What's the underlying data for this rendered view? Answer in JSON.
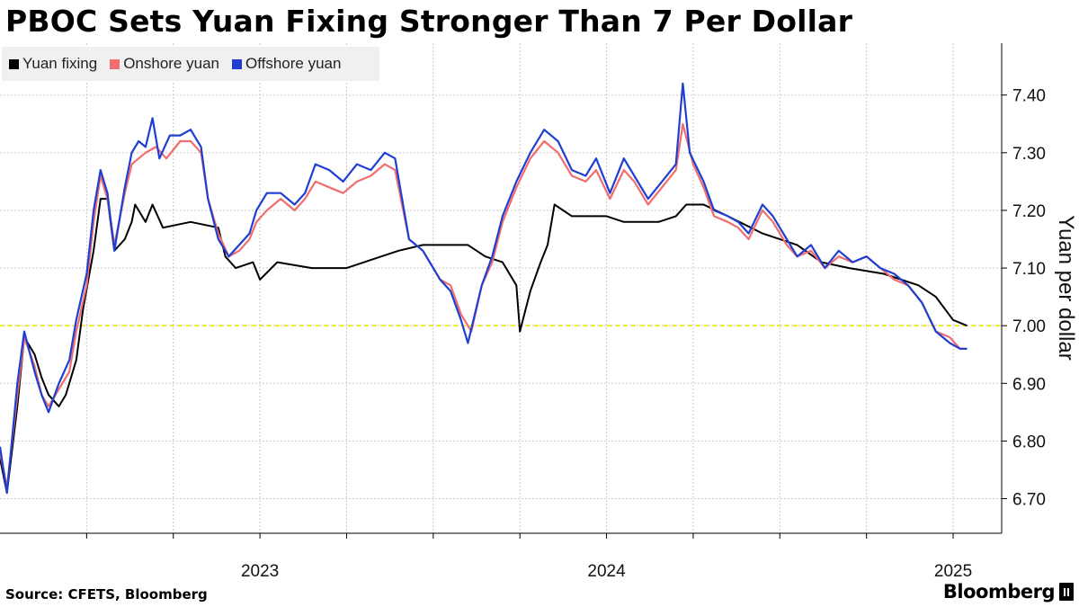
{
  "title": "PBOC Sets Yuan Fixing Stronger Than 7 Per Dollar",
  "source": "Source: CFETS, Bloomberg",
  "brand": "Bloomberg",
  "colors": {
    "fixing": "#000000",
    "onshore": "#f26d6d",
    "offshore": "#1f3fd1",
    "reference": "#f2e600",
    "grid": "#c8c8c8"
  },
  "chart_data": {
    "type": "line",
    "title": "PBOC Sets Yuan Fixing Stronger Than 7 Per Dollar",
    "xlabel": "",
    "ylabel": "Yuan per dollar",
    "x_ticks": [
      "2023",
      "2024",
      "2025"
    ],
    "y_ticks": [
      "6.70",
      "6.80",
      "6.90",
      "7.00",
      "7.10",
      "7.20",
      "7.30",
      "7.40"
    ],
    "ylim": [
      6.64,
      7.49
    ],
    "xlim": [
      2022.75,
      2025.64
    ],
    "y_axis_side": "right",
    "grid": true,
    "legend": "top-left",
    "reference_line": {
      "y": 7.0,
      "style": "dashed"
    },
    "series": [
      {
        "name": "Yuan fixing",
        "color": "#000000",
        "points": [
          [
            2022.75,
            6.77
          ],
          [
            2022.77,
            6.71
          ],
          [
            2022.8,
            6.86
          ],
          [
            2022.82,
            6.98
          ],
          [
            2022.85,
            6.95
          ],
          [
            2022.87,
            6.91
          ],
          [
            2022.89,
            6.88
          ],
          [
            2022.92,
            6.86
          ],
          [
            2022.94,
            6.88
          ],
          [
            2022.97,
            6.94
          ],
          [
            2022.99,
            7.03
          ],
          [
            2023.02,
            7.13
          ],
          [
            2023.04,
            7.22
          ],
          [
            2023.06,
            7.22
          ],
          [
            2023.08,
            7.13
          ],
          [
            2023.11,
            7.15
          ],
          [
            2023.13,
            7.18
          ],
          [
            2023.14,
            7.21
          ],
          [
            2023.17,
            7.18
          ],
          [
            2023.19,
            7.21
          ],
          [
            2023.22,
            7.17
          ],
          [
            2023.3,
            7.18
          ],
          [
            2023.38,
            7.17
          ],
          [
            2023.4,
            7.12
          ],
          [
            2023.43,
            7.1
          ],
          [
            2023.48,
            7.11
          ],
          [
            2023.5,
            7.08
          ],
          [
            2023.55,
            7.11
          ],
          [
            2023.65,
            7.1
          ],
          [
            2023.75,
            7.1
          ],
          [
            2023.85,
            7.12
          ],
          [
            2023.9,
            7.13
          ],
          [
            2023.97,
            7.14
          ],
          [
            2024.05,
            7.14
          ],
          [
            2024.1,
            7.14
          ],
          [
            2024.15,
            7.12
          ],
          [
            2024.2,
            7.11
          ],
          [
            2024.24,
            7.07
          ],
          [
            2024.25,
            6.99
          ],
          [
            2024.28,
            7.06
          ],
          [
            2024.31,
            7.11
          ],
          [
            2024.33,
            7.14
          ],
          [
            2024.35,
            7.21
          ],
          [
            2024.4,
            7.19
          ],
          [
            2024.5,
            7.19
          ],
          [
            2024.55,
            7.18
          ],
          [
            2024.65,
            7.18
          ],
          [
            2024.7,
            7.19
          ],
          [
            2024.73,
            7.21
          ],
          [
            2024.78,
            7.21
          ],
          [
            2024.85,
            7.19
          ],
          [
            2024.95,
            7.16
          ],
          [
            2025.05,
            7.14
          ],
          [
            2025.12,
            7.11
          ],
          [
            2025.2,
            7.1
          ],
          [
            2025.3,
            7.09
          ],
          [
            2025.4,
            7.07
          ],
          [
            2025.45,
            7.05
          ],
          [
            2025.5,
            7.01
          ],
          [
            2025.54,
            7.0
          ]
        ]
      },
      {
        "name": "Onshore yuan",
        "color": "#f26d6d",
        "points": [
          [
            2022.75,
            6.78
          ],
          [
            2022.77,
            6.72
          ],
          [
            2022.8,
            6.88
          ],
          [
            2022.82,
            6.98
          ],
          [
            2022.85,
            6.93
          ],
          [
            2022.87,
            6.88
          ],
          [
            2022.89,
            6.86
          ],
          [
            2022.92,
            6.89
          ],
          [
            2022.95,
            6.92
          ],
          [
            2022.97,
            6.99
          ],
          [
            2023.0,
            7.07
          ],
          [
            2023.02,
            7.18
          ],
          [
            2023.04,
            7.26
          ],
          [
            2023.06,
            7.22
          ],
          [
            2023.08,
            7.14
          ],
          [
            2023.11,
            7.23
          ],
          [
            2023.13,
            7.28
          ],
          [
            2023.15,
            7.29
          ],
          [
            2023.17,
            7.3
          ],
          [
            2023.2,
            7.31
          ],
          [
            2023.23,
            7.29
          ],
          [
            2023.27,
            7.32
          ],
          [
            2023.3,
            7.32
          ],
          [
            2023.33,
            7.3
          ],
          [
            2023.35,
            7.22
          ],
          [
            2023.38,
            7.16
          ],
          [
            2023.41,
            7.12
          ],
          [
            2023.44,
            7.13
          ],
          [
            2023.47,
            7.15
          ],
          [
            2023.49,
            7.18
          ],
          [
            2023.52,
            7.2
          ],
          [
            2023.56,
            7.22
          ],
          [
            2023.6,
            7.2
          ],
          [
            2023.63,
            7.22
          ],
          [
            2023.66,
            7.25
          ],
          [
            2023.7,
            7.24
          ],
          [
            2023.74,
            7.23
          ],
          [
            2023.78,
            7.25
          ],
          [
            2023.82,
            7.26
          ],
          [
            2023.86,
            7.28
          ],
          [
            2023.89,
            7.27
          ],
          [
            2023.93,
            7.15
          ],
          [
            2023.97,
            7.13
          ],
          [
            2024.02,
            7.08
          ],
          [
            2024.05,
            7.07
          ],
          [
            2024.08,
            7.02
          ],
          [
            2024.11,
            6.99
          ],
          [
            2024.14,
            7.07
          ],
          [
            2024.17,
            7.11
          ],
          [
            2024.2,
            7.18
          ],
          [
            2024.24,
            7.24
          ],
          [
            2024.28,
            7.29
          ],
          [
            2024.32,
            7.32
          ],
          [
            2024.36,
            7.3
          ],
          [
            2024.4,
            7.26
          ],
          [
            2024.44,
            7.25
          ],
          [
            2024.47,
            7.27
          ],
          [
            2024.51,
            7.22
          ],
          [
            2024.55,
            7.27
          ],
          [
            2024.58,
            7.25
          ],
          [
            2024.62,
            7.21
          ],
          [
            2024.66,
            7.24
          ],
          [
            2024.7,
            7.27
          ],
          [
            2024.72,
            7.35
          ],
          [
            2024.75,
            7.28
          ],
          [
            2024.78,
            7.24
          ],
          [
            2024.81,
            7.19
          ],
          [
            2024.85,
            7.18
          ],
          [
            2024.88,
            7.17
          ],
          [
            2024.91,
            7.15
          ],
          [
            2024.95,
            7.2
          ],
          [
            2024.98,
            7.18
          ],
          [
            2025.02,
            7.14
          ],
          [
            2025.05,
            7.12
          ],
          [
            2025.09,
            7.13
          ],
          [
            2025.13,
            7.1
          ],
          [
            2025.17,
            7.12
          ],
          [
            2025.21,
            7.11
          ],
          [
            2025.25,
            7.12
          ],
          [
            2025.29,
            7.1
          ],
          [
            2025.33,
            7.08
          ],
          [
            2025.37,
            7.07
          ],
          [
            2025.41,
            7.04
          ],
          [
            2025.45,
            6.99
          ],
          [
            2025.49,
            6.98
          ],
          [
            2025.52,
            6.96
          ],
          [
            2025.54,
            6.96
          ]
        ]
      },
      {
        "name": "Offshore yuan",
        "color": "#1f3fd1",
        "points": [
          [
            2022.75,
            6.79
          ],
          [
            2022.77,
            6.71
          ],
          [
            2022.8,
            6.9
          ],
          [
            2022.82,
            6.99
          ],
          [
            2022.85,
            6.92
          ],
          [
            2022.87,
            6.88
          ],
          [
            2022.89,
            6.85
          ],
          [
            2022.92,
            6.9
          ],
          [
            2022.95,
            6.94
          ],
          [
            2022.97,
            7.01
          ],
          [
            2023.0,
            7.09
          ],
          [
            2023.02,
            7.2
          ],
          [
            2023.04,
            7.27
          ],
          [
            2023.06,
            7.23
          ],
          [
            2023.08,
            7.13
          ],
          [
            2023.11,
            7.24
          ],
          [
            2023.13,
            7.3
          ],
          [
            2023.15,
            7.32
          ],
          [
            2023.17,
            7.31
          ],
          [
            2023.19,
            7.36
          ],
          [
            2023.21,
            7.29
          ],
          [
            2023.24,
            7.33
          ],
          [
            2023.27,
            7.33
          ],
          [
            2023.3,
            7.34
          ],
          [
            2023.33,
            7.31
          ],
          [
            2023.35,
            7.22
          ],
          [
            2023.38,
            7.15
          ],
          [
            2023.41,
            7.12
          ],
          [
            2023.44,
            7.14
          ],
          [
            2023.47,
            7.16
          ],
          [
            2023.49,
            7.2
          ],
          [
            2023.52,
            7.23
          ],
          [
            2023.56,
            7.23
          ],
          [
            2023.6,
            7.21
          ],
          [
            2023.63,
            7.23
          ],
          [
            2023.66,
            7.28
          ],
          [
            2023.7,
            7.27
          ],
          [
            2023.74,
            7.25
          ],
          [
            2023.78,
            7.28
          ],
          [
            2023.82,
            7.27
          ],
          [
            2023.86,
            7.3
          ],
          [
            2023.89,
            7.29
          ],
          [
            2023.93,
            7.15
          ],
          [
            2023.97,
            7.13
          ],
          [
            2024.02,
            7.08
          ],
          [
            2024.05,
            7.06
          ],
          [
            2024.08,
            7.01
          ],
          [
            2024.1,
            6.97
          ],
          [
            2024.14,
            7.07
          ],
          [
            2024.17,
            7.12
          ],
          [
            2024.2,
            7.19
          ],
          [
            2024.24,
            7.25
          ],
          [
            2024.28,
            7.3
          ],
          [
            2024.32,
            7.34
          ],
          [
            2024.36,
            7.32
          ],
          [
            2024.4,
            7.27
          ],
          [
            2024.44,
            7.26
          ],
          [
            2024.47,
            7.29
          ],
          [
            2024.51,
            7.23
          ],
          [
            2024.55,
            7.29
          ],
          [
            2024.58,
            7.26
          ],
          [
            2024.62,
            7.22
          ],
          [
            2024.66,
            7.25
          ],
          [
            2024.7,
            7.28
          ],
          [
            2024.72,
            7.42
          ],
          [
            2024.74,
            7.3
          ],
          [
            2024.78,
            7.25
          ],
          [
            2024.81,
            7.2
          ],
          [
            2024.85,
            7.19
          ],
          [
            2024.88,
            7.18
          ],
          [
            2024.91,
            7.16
          ],
          [
            2024.95,
            7.21
          ],
          [
            2024.98,
            7.19
          ],
          [
            2025.02,
            7.15
          ],
          [
            2025.05,
            7.12
          ],
          [
            2025.09,
            7.14
          ],
          [
            2025.13,
            7.1
          ],
          [
            2025.17,
            7.13
          ],
          [
            2025.21,
            7.11
          ],
          [
            2025.25,
            7.12
          ],
          [
            2025.29,
            7.1
          ],
          [
            2025.33,
            7.09
          ],
          [
            2025.37,
            7.07
          ],
          [
            2025.41,
            7.04
          ],
          [
            2025.45,
            6.99
          ],
          [
            2025.49,
            6.97
          ],
          [
            2025.52,
            6.96
          ],
          [
            2025.54,
            6.96
          ]
        ]
      }
    ]
  }
}
